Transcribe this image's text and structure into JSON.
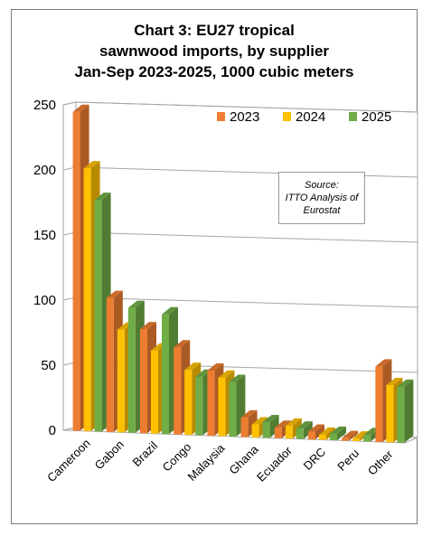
{
  "chart_data": {
    "type": "bar",
    "title_lines": [
      "Chart 3: EU27 tropical",
      "sawnwood imports, by supplier",
      "Jan-Sep 2023-2025, 1000 cubic meters"
    ],
    "categories": [
      "Cameroon",
      "Gabon",
      "Brazil",
      "Congo",
      "Malaysia",
      "Ghana",
      "Ecuador",
      "DRC",
      "Peru",
      "Other"
    ],
    "series": [
      {
        "name": "2023",
        "color": "#ed7d31",
        "values": [
          245,
          103,
          80,
          67,
          50,
          15,
          8,
          6,
          2,
          58
        ]
      },
      {
        "name": "2024",
        "color": "#ffc000",
        "values": [
          202,
          79,
          64,
          50,
          45,
          10,
          10,
          4,
          2,
          44
        ]
      },
      {
        "name": "2025",
        "color": "#70ad47",
        "values": [
          178,
          96,
          92,
          45,
          42,
          12,
          8,
          5,
          5,
          43
        ]
      }
    ],
    "yticks": [
      0,
      50,
      100,
      150,
      200,
      250
    ],
    "ylim": [
      0,
      250
    ],
    "grid": true,
    "legend_position": "top-right",
    "annotation": {
      "lines": [
        "Source:",
        "ITTO Analysis of",
        "Eurostat"
      ]
    }
  }
}
